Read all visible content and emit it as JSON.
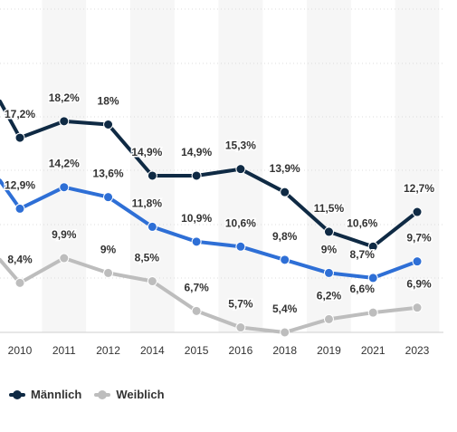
{
  "chart_data": {
    "type": "line",
    "categories": [
      "2010",
      "2011",
      "2012",
      "2014",
      "2015",
      "2016",
      "2018",
      "2019",
      "2021",
      "2023"
    ],
    "series": [
      {
        "name": "Männlich",
        "color": "#0f2a44",
        "values": [
          17.2,
          18.2,
          18,
          14.9,
          14.9,
          15.3,
          13.9,
          11.5,
          10.6,
          12.7
        ],
        "labels": [
          "17,2%",
          "18,2%",
          "18%",
          "14,9%",
          "14,9%",
          "15,3%",
          "13,9%",
          "11,5%",
          "10,6%",
          "12,7%"
        ],
        "lead_in": 19.4
      },
      {
        "name": "",
        "color": "#2e6fd6",
        "values": [
          12.9,
          14.2,
          13.6,
          11.8,
          10.9,
          10.6,
          9.8,
          9,
          8.7,
          9.7
        ],
        "labels": [
          "12,9%",
          "14,2%",
          "13,6%",
          "11,8%",
          "10,9%",
          "10,6%",
          "9,8%",
          "9%",
          "8,7%",
          "9,7%"
        ],
        "lead_in": 14.6
      },
      {
        "name": "Weiblich",
        "color": "#bdbdbd",
        "values": [
          8.4,
          9.9,
          9,
          8.5,
          6.7,
          5.7,
          5.4,
          6.2,
          6.6,
          6.9
        ],
        "labels": [
          "8,4%",
          "9,9%",
          "9%",
          "8,5%",
          "6,7%",
          "5,7%",
          "5,4%",
          "6,2%",
          "6,6%",
          "6,9%"
        ],
        "lead_in": 9.8
      }
    ],
    "ylim": [
      5.4,
      25
    ],
    "grid": true,
    "legend_position": "bottom-left"
  },
  "legend": [
    {
      "label": "Männlich",
      "color": "#0f2a44"
    },
    {
      "label": "Weiblich",
      "color": "#bdbdbd"
    }
  ]
}
